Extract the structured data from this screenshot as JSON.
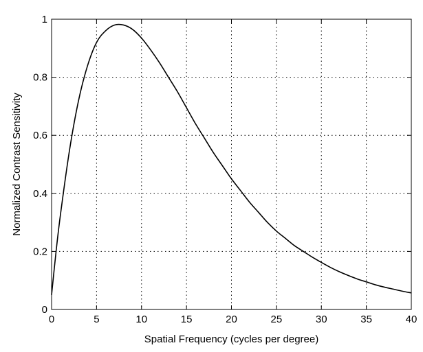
{
  "chart_data": {
    "type": "line",
    "title": "",
    "xlabel": "Spatial Frequency (cycles per degree)",
    "ylabel": "Normalized Contrast Sensitivity",
    "xlim": [
      0,
      40
    ],
    "ylim": [
      0,
      1
    ],
    "x_ticks": [
      0,
      5,
      10,
      15,
      20,
      25,
      30,
      35,
      40
    ],
    "y_ticks": [
      0,
      0.2,
      0.4,
      0.6,
      0.8,
      1
    ],
    "x_tick_labels": [
      "0",
      "5",
      "10",
      "15",
      "20",
      "25",
      "30",
      "35",
      "40"
    ],
    "y_tick_labels": [
      "0",
      "0.2",
      "0.4",
      "0.6",
      "0.8",
      "1"
    ],
    "grid": true,
    "grid_style": "dotted",
    "series": [
      {
        "color": "#000000",
        "x": [
          0,
          0.5,
          1,
          2,
          3,
          4,
          5,
          6,
          7,
          8,
          9,
          10,
          11,
          12,
          13,
          14,
          15,
          16,
          17,
          18,
          19,
          20,
          21,
          22,
          23,
          24,
          25,
          26,
          27,
          28,
          29,
          30,
          31,
          32,
          33,
          34,
          35,
          36,
          37,
          38,
          39,
          40
        ],
        "y": [
          0.05,
          0.2,
          0.33,
          0.55,
          0.72,
          0.84,
          0.92,
          0.96,
          0.98,
          0.98,
          0.965,
          0.935,
          0.895,
          0.85,
          0.8,
          0.75,
          0.695,
          0.64,
          0.59,
          0.54,
          0.495,
          0.45,
          0.41,
          0.37,
          0.335,
          0.3,
          0.27,
          0.245,
          0.22,
          0.2,
          0.18,
          0.162,
          0.145,
          0.13,
          0.117,
          0.105,
          0.095,
          0.085,
          0.077,
          0.07,
          0.063,
          0.057
        ]
      }
    ]
  }
}
